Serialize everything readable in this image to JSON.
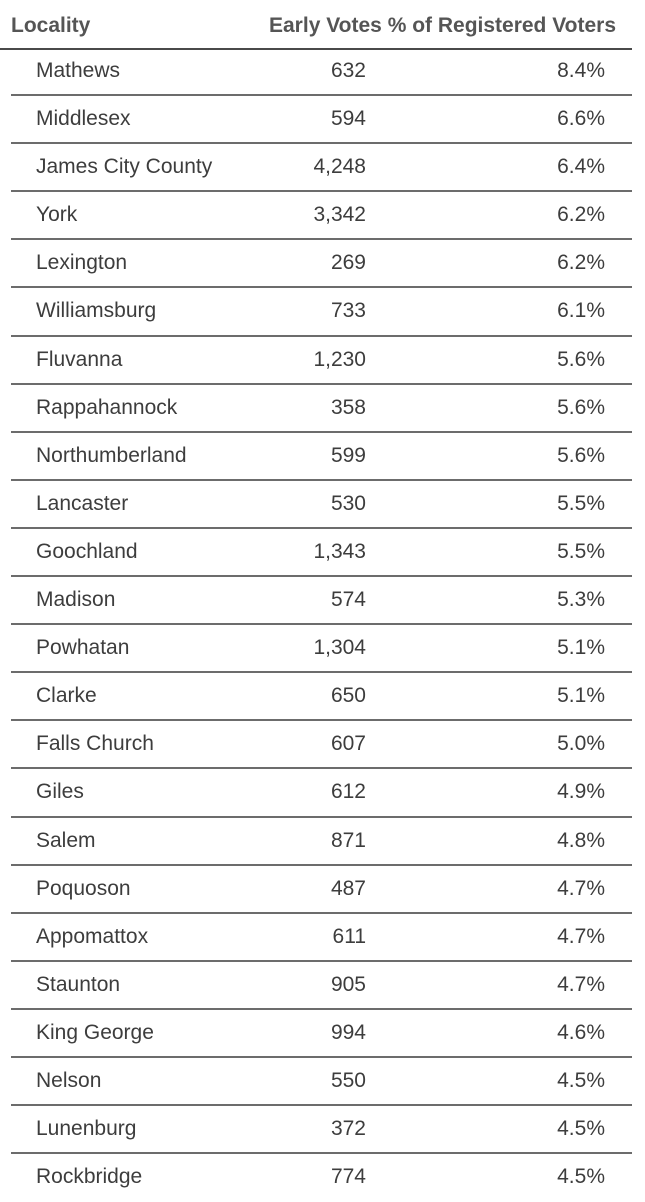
{
  "header": {
    "locality": "Locality",
    "early_votes": "Early Votes",
    "pct_registered": "% of Registered Voters"
  },
  "rows": [
    {
      "locality": "Mathews",
      "early_votes": "632",
      "pct": "8.4%"
    },
    {
      "locality": "Middlesex",
      "early_votes": "594",
      "pct": "6.6%"
    },
    {
      "locality": "James City County",
      "early_votes": "4,248",
      "pct": "6.4%"
    },
    {
      "locality": "York",
      "early_votes": "3,342",
      "pct": "6.2%"
    },
    {
      "locality": "Lexington",
      "early_votes": "269",
      "pct": "6.2%"
    },
    {
      "locality": "Williamsburg",
      "early_votes": "733",
      "pct": "6.1%"
    },
    {
      "locality": "Fluvanna",
      "early_votes": "1,230",
      "pct": "5.6%"
    },
    {
      "locality": "Rappahannock",
      "early_votes": "358",
      "pct": "5.6%"
    },
    {
      "locality": "Northumberland",
      "early_votes": "599",
      "pct": "5.6%"
    },
    {
      "locality": "Lancaster",
      "early_votes": "530",
      "pct": "5.5%"
    },
    {
      "locality": "Goochland",
      "early_votes": "1,343",
      "pct": "5.5%"
    },
    {
      "locality": "Madison",
      "early_votes": "574",
      "pct": "5.3%"
    },
    {
      "locality": "Powhatan",
      "early_votes": "1,304",
      "pct": "5.1%"
    },
    {
      "locality": "Clarke",
      "early_votes": "650",
      "pct": "5.1%"
    },
    {
      "locality": "Falls Church",
      "early_votes": "607",
      "pct": "5.0%"
    },
    {
      "locality": "Giles",
      "early_votes": "612",
      "pct": "4.9%"
    },
    {
      "locality": "Salem",
      "early_votes": "871",
      "pct": "4.8%"
    },
    {
      "locality": "Poquoson",
      "early_votes": "487",
      "pct": "4.7%"
    },
    {
      "locality": "Appomattox",
      "early_votes": "611",
      "pct": "4.7%"
    },
    {
      "locality": "Staunton",
      "early_votes": "905",
      "pct": "4.7%"
    },
    {
      "locality": "King George",
      "early_votes": "994",
      "pct": "4.6%"
    },
    {
      "locality": "Nelson",
      "early_votes": "550",
      "pct": "4.5%"
    },
    {
      "locality": "Lunenburg",
      "early_votes": "372",
      "pct": "4.5%"
    },
    {
      "locality": "Rockbridge",
      "early_votes": "774",
      "pct": "4.5%"
    }
  ]
}
